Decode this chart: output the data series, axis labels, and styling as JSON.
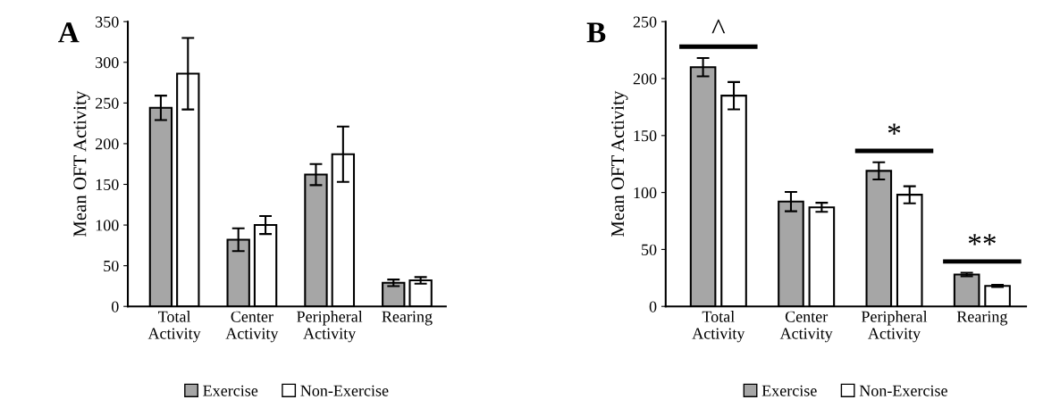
{
  "chart_data": [
    {
      "type": "bar",
      "categories": [
        "Total\nActivity",
        "Center\nActivity",
        "Peripheral\nActivity",
        "Rearing"
      ],
      "series": [
        {
          "name": "Exercise",
          "color": "#a6a6a6",
          "values": [
            244,
            82,
            162,
            29
          ],
          "errors": [
            15,
            14,
            13,
            4
          ]
        },
        {
          "name": "Non-Exercise",
          "color": "#ffffff",
          "values": [
            286,
            100,
            187,
            32
          ],
          "errors": [
            44,
            11,
            34,
            4
          ]
        }
      ],
      "ylabel": "Mean OFT Activity",
      "ylim": [
        0,
        350
      ],
      "yticks": [
        0,
        50,
        100,
        150,
        200,
        250,
        300,
        350
      ],
      "grid": false,
      "legend": "bottom",
      "annotations": [
        "A"
      ]
    },
    {
      "type": "bar",
      "categories": [
        "Total\nActivity",
        "Center\nActivity",
        "Peripheral\nActivity",
        "Rearing"
      ],
      "series": [
        {
          "name": "Exercise",
          "color": "#a6a6a6",
          "values": [
            210,
            92,
            119,
            28
          ],
          "errors": [
            8,
            8.5,
            7.5,
            1.5
          ]
        },
        {
          "name": "Non-Exercise",
          "color": "#ffffff",
          "values": [
            185,
            87,
            98,
            18
          ],
          "errors": [
            12,
            4,
            7.5,
            1
          ]
        }
      ],
      "ylabel": "Mean OFT Activity",
      "ylim": [
        0,
        250
      ],
      "yticks": [
        0,
        50,
        100,
        150,
        200,
        250
      ],
      "grid": false,
      "legend": "bottom",
      "annotations": [
        "B",
        "^",
        "*",
        "**"
      ]
    }
  ]
}
